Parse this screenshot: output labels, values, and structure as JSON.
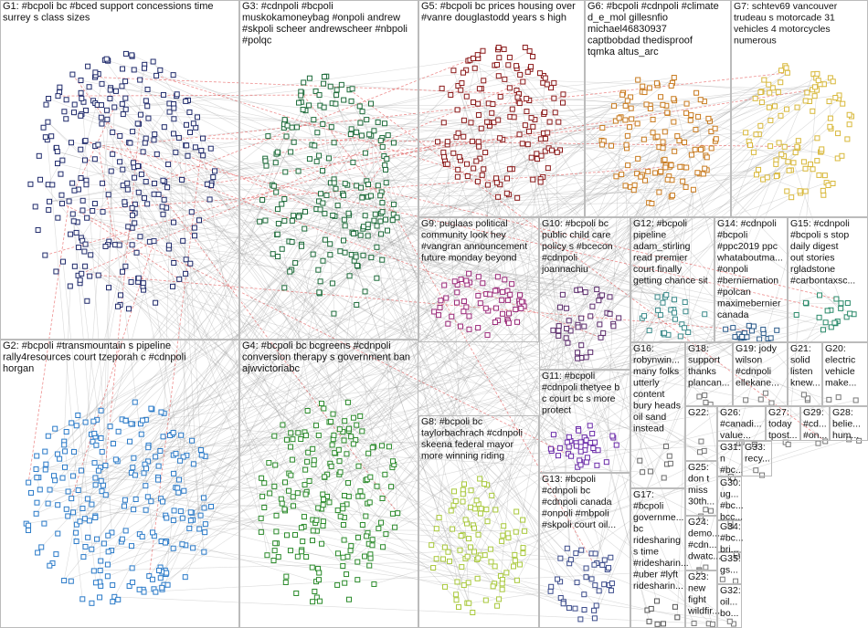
{
  "groups": [
    {
      "label": [
        "G1: #bcpoli bc #bced support concessions time",
        "surrey s class sizes"
      ]
    },
    {
      "label": [
        "G3: #cdnpoli #bcpoli",
        "muskokamoneybag #onpoli andrew",
        "#skpoli scheer andrewscheer #nbpoli",
        "#polqc"
      ]
    },
    {
      "label": [
        "G5: #bcpoli bc prices housing over",
        "#vanre douglastodd years s high"
      ]
    },
    {
      "label": [
        "G6: #bcpoli #cdnpoli #climate",
        "d_e_mol gillesnfio",
        "michael46830937",
        "captbobdad thedisproof",
        "tqmka altus_arc"
      ]
    },
    {
      "label": [
        "G7: schtev69 vancouver",
        "trudeau s motorcade 31",
        "vehicles 4 motorcycles",
        "numerous"
      ]
    },
    {
      "label": [
        "G9: puglaas political",
        "community look hey",
        "#vangran announcement",
        "future monday beyond"
      ]
    },
    {
      "label": [
        "G10: #bcpoli bc",
        "public child care",
        "policy s #bcecon",
        "#cdnpoli",
        "joannachiu"
      ]
    },
    {
      "label": [
        "G12: #bcpoli",
        "pipeline",
        "adam_stirling",
        "read premier",
        "court finally",
        "getting chance sit"
      ]
    },
    {
      "label": [
        "G14: #cdnpoli",
        "#bcpoli",
        "#ppc2019 ppc",
        "whataboutma...",
        "#onpoli",
        "#berniernation",
        "#polcan",
        "maximebernier",
        "canada"
      ]
    },
    {
      "label": [
        "G15: #cdnpoli",
        "#bcpoli s stop",
        "daily digest",
        "out stories",
        "rgladstone",
        "#carbontaxsc..."
      ]
    },
    {
      "label": [
        "G2: #bcpoli #transmountain s pipeline",
        "rally4resources court tzeporah c #cdnpoli",
        "horgan"
      ]
    },
    {
      "label": [
        "G4: #bcpoli bc bcgreens #cdnpoli",
        "conversion therapy s government ban",
        "ajwvictoriabc"
      ]
    },
    {
      "label": [
        "G8: #bcpoli bc",
        "taylorbachrach #cdnpoli",
        "skeena federal mayor",
        "more winning riding"
      ]
    },
    {
      "label": [
        "G11: #bcpoli",
        "#cdnpoli thetyee b",
        "c court bc s more",
        "protect"
      ]
    },
    {
      "label": [
        "G13: #bcpoli",
        "#cdnpoli bc",
        "#cdnpoli canada",
        "#onpoli #mbpoli",
        "#skpoli court oil..."
      ]
    },
    {
      "label": [
        "G16:",
        "robynwin...",
        "many folks",
        "utterly",
        "content",
        "bury heads",
        "oil sand",
        "instead"
      ]
    },
    {
      "label": [
        "G17:",
        "#bcpoli",
        "governme...",
        "bc",
        "ridesharing",
        "s time",
        "#ridesharin...",
        "#uber #lyft",
        "ridesharin..."
      ]
    },
    {
      "label": [
        "G18:",
        "support",
        "thanks",
        "plancan..."
      ]
    },
    {
      "label": [
        "G19: jody",
        "wilson",
        "#cdnpoli",
        "ellekane..."
      ]
    },
    {
      "label": [
        "G21:",
        "solid",
        "listen",
        "knew..."
      ]
    },
    {
      "label": [
        "G20:",
        "electric",
        "vehicle",
        "make..."
      ]
    },
    {
      "label": [
        "G22:"
      ]
    },
    {
      "label": [
        "G26:",
        "#canadi...",
        "value..."
      ]
    },
    {
      "label": [
        "G27:",
        "today",
        "tpost..."
      ]
    },
    {
      "label": [
        "G29:",
        "#cd...",
        "#on..."
      ]
    },
    {
      "label": [
        "G28:",
        "belie...",
        "hum..."
      ]
    },
    {
      "label": [
        "G31:",
        "n",
        "#bc..."
      ]
    },
    {
      "label": [
        "G33:",
        "recy..."
      ]
    },
    {
      "label": [
        "G25:",
        "don t",
        "miss",
        "30th..."
      ]
    },
    {
      "label": [
        "G30:",
        "ug...",
        "#bc...",
        "bcc..."
      ]
    },
    {
      "label": [
        "G34:",
        "#bc...",
        "bri..."
      ]
    },
    {
      "label": [
        "G24:",
        "demo...",
        "#cdn...",
        "dwatc..."
      ]
    },
    {
      "label": [
        "G35:",
        "gs..."
      ]
    },
    {
      "label": [
        "G23:",
        "new",
        "fight",
        "wildfir..."
      ]
    },
    {
      "label": [
        "G32:",
        "oil...",
        "bo..."
      ]
    }
  ]
}
